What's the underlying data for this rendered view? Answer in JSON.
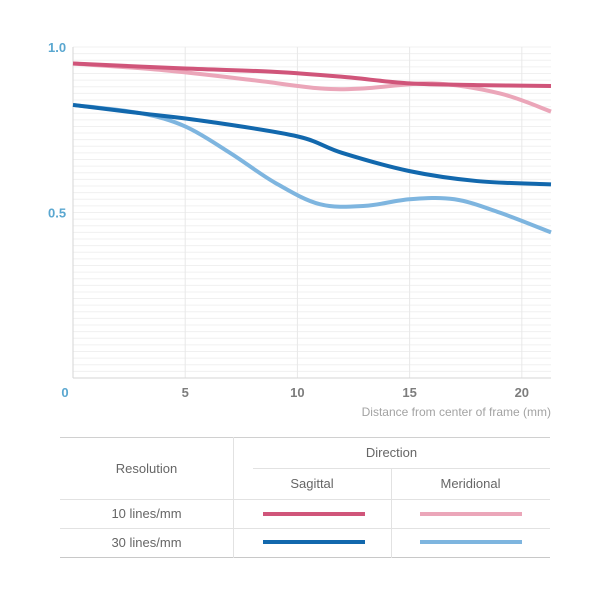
{
  "chart_data": {
    "type": "line",
    "xlabel": "Distance from center of frame (mm)",
    "ylabel": "",
    "xlim": [
      0,
      21.3
    ],
    "ylim": [
      0,
      1.0
    ],
    "x_ticks": [
      0,
      5,
      10,
      15,
      20
    ],
    "x_tick_labels": [
      "0",
      "5",
      "10",
      "15",
      "20"
    ],
    "y_tick_labels": [
      {
        "value": 1.0,
        "label": "1.0"
      },
      {
        "value": 0.5,
        "label": "0.5"
      }
    ],
    "series": [
      {
        "name": "10 lines/mm Sagittal",
        "color": "#d0557a",
        "x": [
          0,
          5,
          9,
          12,
          15,
          18,
          21.3
        ],
        "y": [
          0.95,
          0.935,
          0.925,
          0.91,
          0.89,
          0.885,
          0.882
        ]
      },
      {
        "name": "10 lines/mm Meridional",
        "color": "#eba6b9",
        "x": [
          0,
          4,
          8,
          11,
          13,
          16,
          19,
          21.3
        ],
        "y": [
          0.95,
          0.93,
          0.9,
          0.875,
          0.875,
          0.89,
          0.86,
          0.805
        ]
      },
      {
        "name": "30 lines/mm Sagittal",
        "color": "#1268ad",
        "x": [
          0,
          3,
          6,
          10,
          12,
          15,
          18,
          21.3
        ],
        "y": [
          0.825,
          0.8,
          0.775,
          0.73,
          0.68,
          0.625,
          0.595,
          0.585
        ]
      },
      {
        "name": "30 lines/mm Meridional",
        "color": "#7eb5df",
        "x": [
          0,
          3,
          5,
          7,
          9,
          11,
          13,
          15,
          17,
          19,
          21.3
        ],
        "y": [
          0.825,
          0.8,
          0.76,
          0.68,
          0.59,
          0.525,
          0.52,
          0.54,
          0.54,
          0.5,
          0.44
        ]
      }
    ]
  },
  "legend": {
    "resolution_header": "Resolution",
    "direction_header": "Direction",
    "sagittal": "Sagittal",
    "meridional": "Meridional",
    "row_10": "10 lines/mm",
    "row_30": "30 lines/mm",
    "colors": {
      "s10": "#d0557a",
      "m10": "#eba6b9",
      "s30": "#1268ad",
      "m30": "#7eb5df"
    }
  }
}
